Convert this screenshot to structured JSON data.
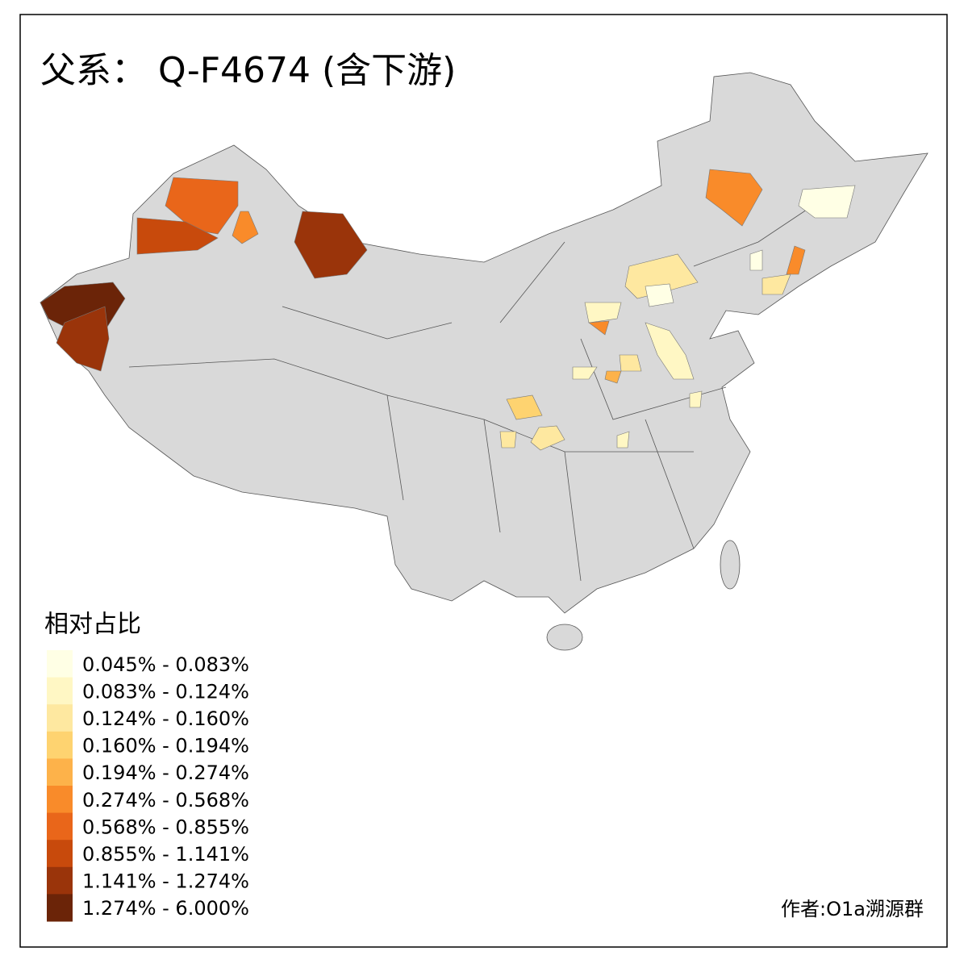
{
  "title": "父系： Q-F4674 (含下游)",
  "legend": {
    "title": "相对占比",
    "items": [
      {
        "label": "0.045% - 0.083%",
        "color": "#ffffe5"
      },
      {
        "label": "0.083% - 0.124%",
        "color": "#fff7c4"
      },
      {
        "label": "0.124% - 0.160%",
        "color": "#fee8a0"
      },
      {
        "label": "0.160% - 0.194%",
        "color": "#fed370"
      },
      {
        "label": "0.194% - 0.274%",
        "color": "#fdb24a"
      },
      {
        "label": "0.274% - 0.568%",
        "color": "#f98b2a"
      },
      {
        "label": "0.568% - 0.855%",
        "color": "#e9661a"
      },
      {
        "label": "0.855% - 1.141%",
        "color": "#c84a0c"
      },
      {
        "label": "1.141% - 1.274%",
        "color": "#9a340a"
      },
      {
        "label": "1.274% - 6.000%",
        "color": "#6b2408"
      }
    ]
  },
  "author": "作者:O1a溯源群"
}
